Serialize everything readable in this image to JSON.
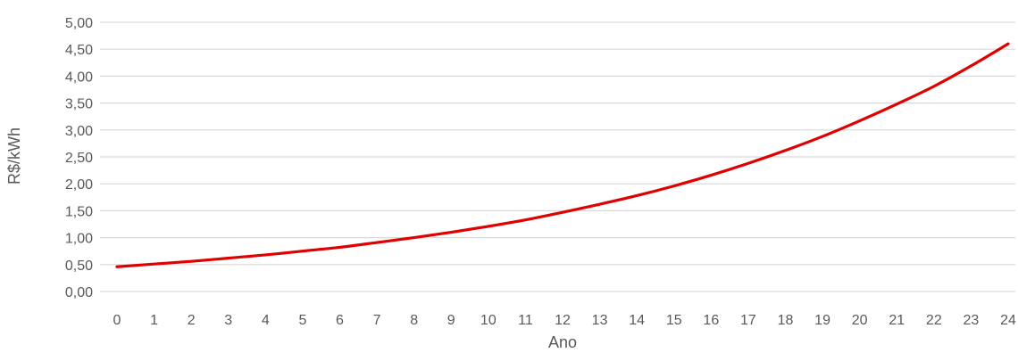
{
  "chart_data": {
    "type": "line",
    "title": "",
    "xlabel": "Ano",
    "ylabel": "R$/kWh",
    "x": [
      0,
      1,
      2,
      3,
      4,
      5,
      6,
      7,
      8,
      9,
      10,
      11,
      12,
      13,
      14,
      15,
      16,
      17,
      18,
      19,
      20,
      21,
      22,
      23,
      24
    ],
    "x_tick_labels": [
      "0",
      "1",
      "2",
      "3",
      "4",
      "5",
      "6",
      "7",
      "8",
      "9",
      "10",
      "11",
      "12",
      "13",
      "14",
      "15",
      "16",
      "17",
      "18",
      "19",
      "20",
      "21",
      "22",
      "23",
      "24"
    ],
    "y_tick_labels": [
      "0,00",
      "0,50",
      "1,00",
      "1,50",
      "2,00",
      "2,50",
      "3,00",
      "3,50",
      "4,00",
      "4,50",
      "5,00"
    ],
    "y_ticks": [
      0,
      0.5,
      1,
      1.5,
      2,
      2.5,
      3,
      3.5,
      4,
      4.5,
      5
    ],
    "ylim": [
      0,
      5
    ],
    "grid": "horizontal",
    "legend": "none",
    "series": [
      {
        "color": "#e00000",
        "values": [
          0.46,
          0.51,
          0.56,
          0.62,
          0.68,
          0.75,
          0.82,
          0.91,
          1.0,
          1.1,
          1.21,
          1.33,
          1.47,
          1.62,
          1.78,
          1.96,
          2.16,
          2.38,
          2.62,
          2.88,
          3.17,
          3.48,
          3.81,
          4.19,
          4.6
        ]
      }
    ]
  }
}
